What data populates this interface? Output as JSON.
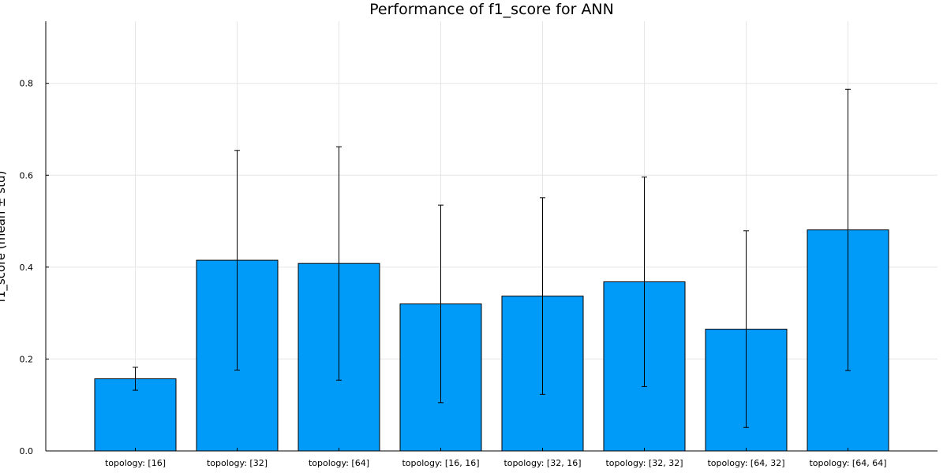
{
  "chart_data": {
    "type": "bar",
    "title": "Performance of f1_score for ANN",
    "ylabel": "f1_score (mean ± std)",
    "xlabel": "",
    "categories": [
      "topology: [16]",
      "topology: [32]",
      "topology: [64]",
      "topology: [16, 16]",
      "topology: [32, 16]",
      "topology: [32, 32]",
      "topology: [64, 32]",
      "topology: [64, 64]"
    ],
    "values": [
      0.157,
      0.415,
      0.408,
      0.32,
      0.337,
      0.368,
      0.265,
      0.481
    ],
    "errors": [
      0.025,
      0.239,
      0.254,
      0.215,
      0.214,
      0.228,
      0.214,
      0.306
    ],
    "ylim": [
      0,
      0.935
    ],
    "yticks": [
      0.0,
      0.2,
      0.4,
      0.6,
      0.8
    ],
    "ytick_labels": [
      "0.0",
      "0.2",
      "0.4",
      "0.6",
      "0.8"
    ],
    "grid": true,
    "colors": {
      "bar": "#009af9",
      "bar_stroke": "#000000",
      "error": "#000000",
      "grid": "#e6e6e6",
      "axis": "#000000"
    }
  }
}
